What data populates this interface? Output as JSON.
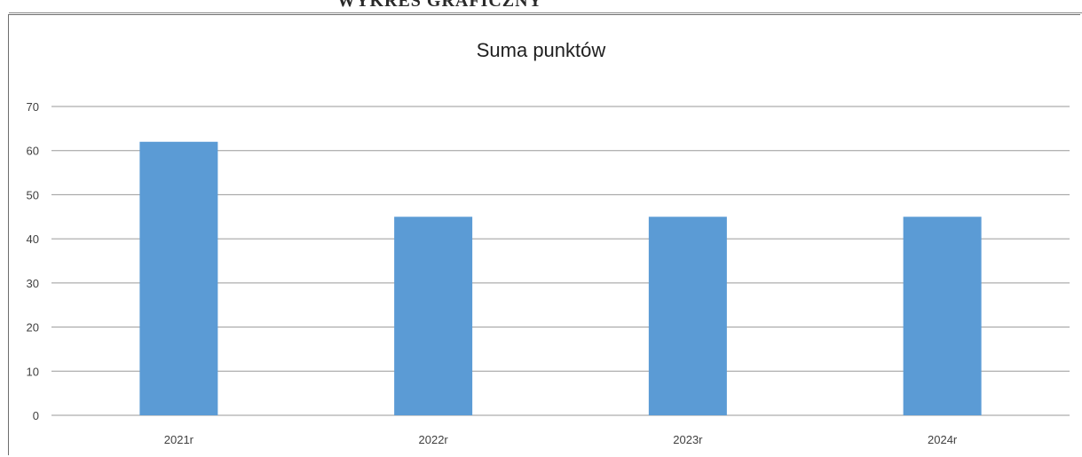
{
  "header": {
    "text": "WYKRES GRAFICZNY"
  },
  "chart_data": {
    "type": "bar",
    "title": "Suma punktów",
    "categories": [
      "2021r",
      "2022r",
      "2023r",
      "2024r"
    ],
    "values": [
      62,
      45,
      45,
      45
    ],
    "ylim": [
      0,
      70
    ],
    "yticks": [
      0,
      10,
      20,
      30,
      40,
      50,
      60,
      70
    ],
    "grid": true,
    "bar_color": "#5b9bd5",
    "xlabel": "",
    "ylabel": ""
  }
}
